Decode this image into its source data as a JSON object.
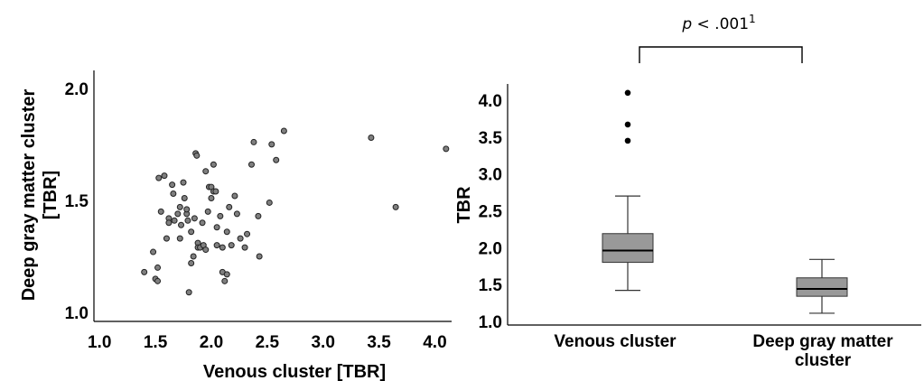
{
  "chart_data": [
    {
      "type": "scatter",
      "xlabel": "Venous cluster [TBR]",
      "ylabel_lines": [
        "Deep gray matter cluster",
        "[TBR]"
      ],
      "xlim": [
        0.95,
        4.15
      ],
      "ylim": [
        0.96,
        2.08
      ],
      "x_ticks": [
        "1.0",
        "1.5",
        "2.0",
        "2.5",
        "3.0",
        "3.5",
        "4.0"
      ],
      "x_tick_values": [
        1.0,
        1.5,
        2.0,
        2.5,
        3.0,
        3.5,
        4.0
      ],
      "y_ticks": [
        "1.0",
        "1.5",
        "2.0"
      ],
      "y_tick_values": [
        1.0,
        1.5,
        2.0
      ],
      "points": [
        [
          1.4,
          1.18
        ],
        [
          1.48,
          1.27
        ],
        [
          1.5,
          1.15
        ],
        [
          1.52,
          1.2
        ],
        [
          1.52,
          1.14
        ],
        [
          1.53,
          1.6
        ],
        [
          1.55,
          1.45
        ],
        [
          1.58,
          1.61
        ],
        [
          1.6,
          1.33
        ],
        [
          1.62,
          1.42
        ],
        [
          1.62,
          1.4
        ],
        [
          1.65,
          1.57
        ],
        [
          1.66,
          1.53
        ],
        [
          1.67,
          1.41
        ],
        [
          1.7,
          1.44
        ],
        [
          1.72,
          1.47
        ],
        [
          1.72,
          1.33
        ],
        [
          1.73,
          1.39
        ],
        [
          1.75,
          1.58
        ],
        [
          1.76,
          1.51
        ],
        [
          1.78,
          1.44
        ],
        [
          1.78,
          1.46
        ],
        [
          1.79,
          1.41
        ],
        [
          1.8,
          1.09
        ],
        [
          1.82,
          1.22
        ],
        [
          1.82,
          1.36
        ],
        [
          1.84,
          1.25
        ],
        [
          1.85,
          1.42
        ],
        [
          1.86,
          1.71
        ],
        [
          1.87,
          1.7
        ],
        [
          1.88,
          1.31
        ],
        [
          1.88,
          1.29
        ],
        [
          1.9,
          1.29
        ],
        [
          1.92,
          1.4
        ],
        [
          1.93,
          1.3
        ],
        [
          1.95,
          1.28
        ],
        [
          1.95,
          1.63
        ],
        [
          1.97,
          1.45
        ],
        [
          1.98,
          1.56
        ],
        [
          2.0,
          1.51
        ],
        [
          2.0,
          1.56
        ],
        [
          2.02,
          1.54
        ],
        [
          2.02,
          1.66
        ],
        [
          2.04,
          1.54
        ],
        [
          2.05,
          1.3
        ],
        [
          2.05,
          1.38
        ],
        [
          2.08,
          1.43
        ],
        [
          2.1,
          1.18
        ],
        [
          2.1,
          1.29
        ],
        [
          2.12,
          1.14
        ],
        [
          2.14,
          1.17
        ],
        [
          2.14,
          1.36
        ],
        [
          2.16,
          1.47
        ],
        [
          2.18,
          1.3
        ],
        [
          2.21,
          1.52
        ],
        [
          2.23,
          1.44
        ],
        [
          2.26,
          1.33
        ],
        [
          2.3,
          1.29
        ],
        [
          2.32,
          1.35
        ],
        [
          2.36,
          1.66
        ],
        [
          2.38,
          1.76
        ],
        [
          2.42,
          1.43
        ],
        [
          2.43,
          1.25
        ],
        [
          2.52,
          1.49
        ],
        [
          2.54,
          1.75
        ],
        [
          2.58,
          1.68
        ],
        [
          2.65,
          1.81
        ],
        [
          3.43,
          1.78
        ],
        [
          3.65,
          1.47
        ],
        [
          4.1,
          1.73
        ]
      ]
    },
    {
      "type": "box",
      "ylabel": "TBR",
      "ylim": [
        0.95,
        4.22
      ],
      "y_ticks": [
        "1.0",
        "1.5",
        "2.0",
        "2.5",
        "3.0",
        "3.5",
        "4.0"
      ],
      "y_tick_values": [
        1.0,
        1.5,
        2.0,
        2.5,
        3.0,
        3.5,
        4.0
      ],
      "categories": [
        "Venous cluster",
        "Deep gray matter cluster"
      ],
      "category_lines": [
        [
          "Venous cluster"
        ],
        [
          "Deep gray matter",
          "cluster"
        ]
      ],
      "boxes": [
        {
          "whisker_low": 1.42,
          "q1": 1.8,
          "median": 1.96,
          "q3": 2.19,
          "whisker_high": 2.7,
          "outliers": [
            3.45,
            3.67,
            4.1
          ]
        },
        {
          "whisker_low": 1.11,
          "q1": 1.34,
          "median": 1.44,
          "q3": 1.59,
          "whisker_high": 1.84,
          "outliers": []
        }
      ],
      "annotation": {
        "text": "p < .001",
        "superscript": "1"
      }
    }
  ]
}
